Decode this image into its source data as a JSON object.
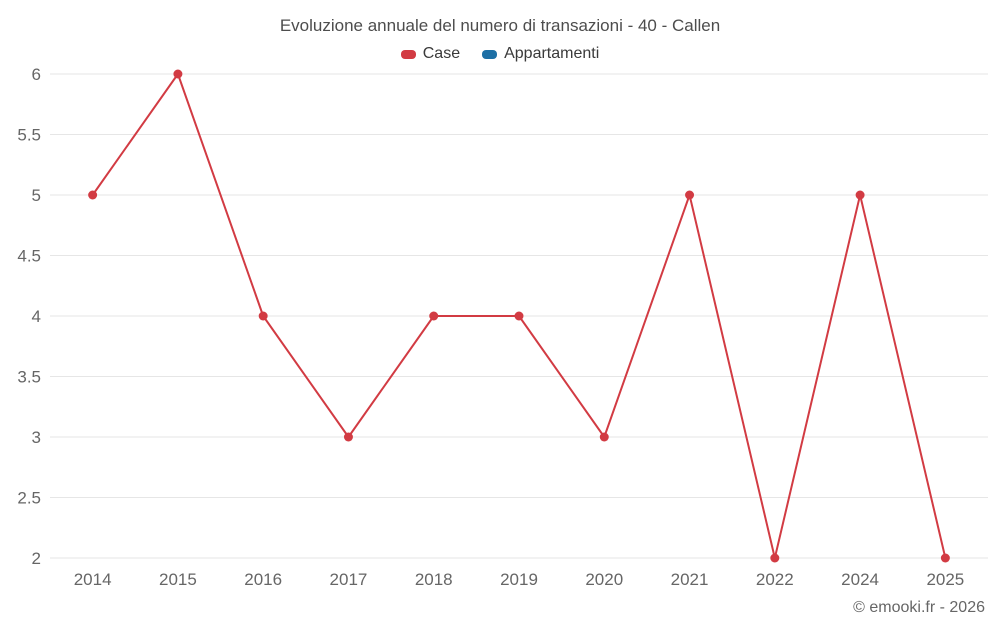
{
  "title": "Evoluzione annuale del numero di transazioni - 40 - Callen",
  "legend": {
    "items": [
      {
        "label": "Case",
        "color": "#d23b43"
      },
      {
        "label": "Appartamenti",
        "color": "#1d6fa5"
      }
    ]
  },
  "footer": {
    "credit": "© emooki.fr - 2026"
  },
  "chart_data": {
    "type": "line",
    "title": "Evoluzione annuale del numero di transazioni - 40 - Callen",
    "categories": [
      "2014",
      "2015",
      "2016",
      "2017",
      "2018",
      "2019",
      "2020",
      "2021",
      "2022",
      "2024",
      "2025"
    ],
    "series": [
      {
        "name": "Case",
        "color": "#d23b43",
        "values": [
          5,
          6,
          4,
          3,
          4,
          4,
          3,
          5,
          2,
          5,
          2
        ]
      },
      {
        "name": "Appartamenti",
        "color": "#1d6fa5",
        "values": []
      }
    ],
    "xlabel": "",
    "ylabel": "",
    "ylim": [
      2,
      6
    ],
    "yticks": [
      2,
      2.5,
      3,
      3.5,
      4,
      4.5,
      5,
      5.5,
      6
    ],
    "grid": true,
    "legend_position": "top",
    "marker": "circle",
    "colors": {
      "grid": "#e6e6e6",
      "axis_labels": "#666666",
      "title": "#4d4d4d"
    }
  }
}
